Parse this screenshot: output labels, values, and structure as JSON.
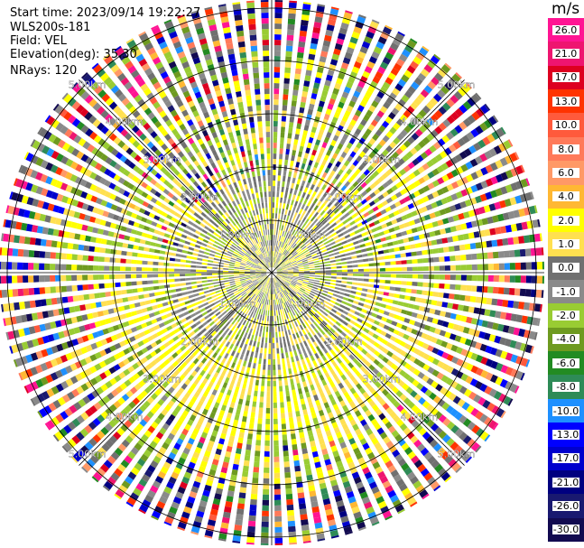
{
  "header": {
    "start_time": "Start time: 2023/09/14 19:22:27",
    "instrument": "WLS200s-181",
    "field": "Field: VEL",
    "elevation": "Elevation(deg): 35.30",
    "nrays": "NRays: 120"
  },
  "colorbar": {
    "unit": "m/s",
    "ticks": [
      "26.0",
      "21.0",
      "17.0",
      "13.0",
      "10.0",
      "8.0",
      "6.0",
      "4.0",
      "2.0",
      "1.0",
      "0.0",
      "-1.0",
      "-2.0",
      "-4.0",
      "-6.0",
      "-8.0",
      "-10.0",
      "-13.0",
      "-17.0",
      "-21.0",
      "-26.0",
      "-30.0"
    ],
    "colors": [
      "#ff1493",
      "#ee1570",
      "#dd0020",
      "#ff3300",
      "#ff5a3c",
      "#ff7a5a",
      "#ff9966",
      "#ffb833",
      "#ffff00",
      "#ffe050",
      "#707070",
      "#8a8a8a",
      "#99cc33",
      "#6e9a20",
      "#228b22",
      "#2e8b57",
      "#1e90ff",
      "#0000ff",
      "#0000cd",
      "#000080",
      "#191970",
      "#120a50"
    ]
  },
  "chart_data": {
    "type": "ppi",
    "field": "VEL",
    "units": "m/s",
    "elevation_deg": 35.3,
    "nrays": 120,
    "range_ring_labels": [
      "1.00km",
      "2.00km",
      "3.00km",
      "4.00km",
      "5.00km"
    ],
    "color_scale_min": -30.0,
    "color_scale_max": 26.0
  }
}
